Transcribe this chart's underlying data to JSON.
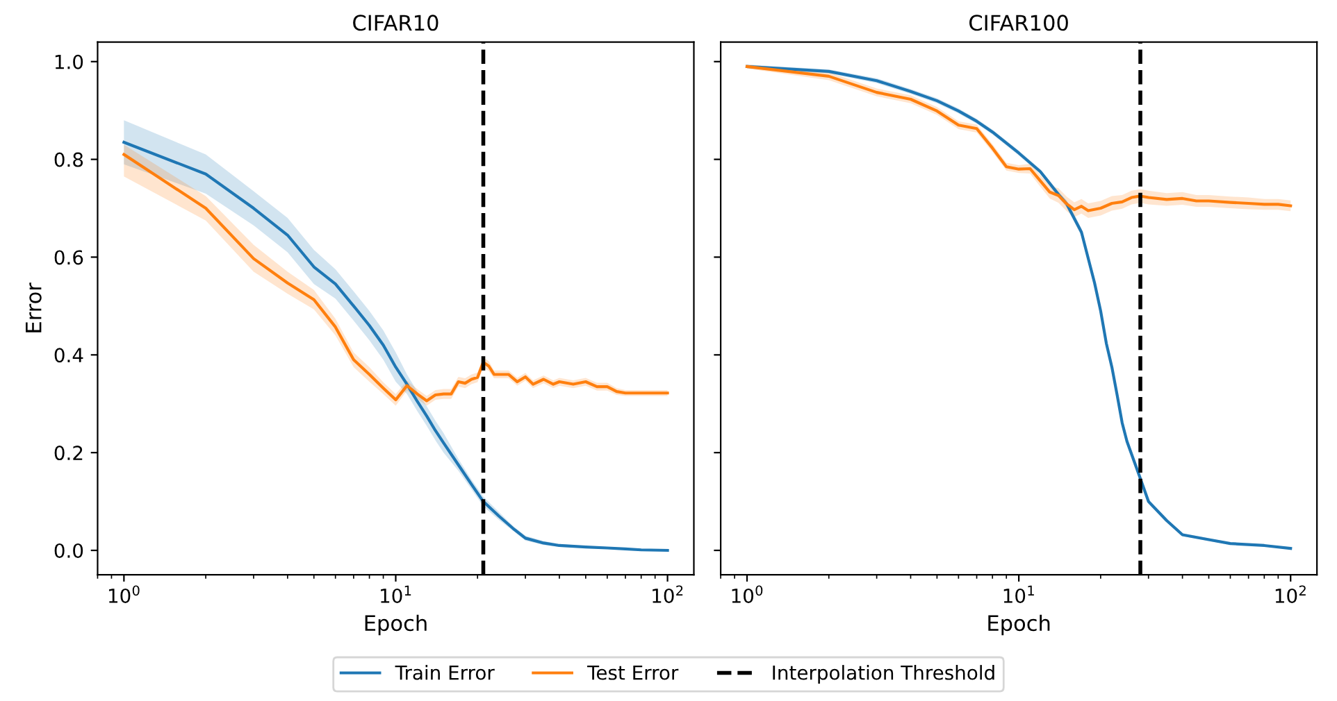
{
  "chart_data": [
    {
      "type": "line",
      "title": "CIFAR10",
      "xlabel": "Epoch",
      "ylabel": "Error",
      "log": "x",
      "xlim": [
        0.8,
        125
      ],
      "xticks": [
        {
          "value": 1,
          "label": "10$^{0}$"
        },
        {
          "value": 10,
          "label": "10$^{1}$"
        },
        {
          "value": 100,
          "label": "10$^{2}$"
        }
      ],
      "ylim": [
        -0.05,
        1.04
      ],
      "yticks": [
        {
          "value": 0,
          "label": "0.0"
        },
        {
          "value": 0.2,
          "label": "0.2"
        },
        {
          "value": 0.4,
          "label": "0.4"
        },
        {
          "value": 0.6,
          "label": "0.6"
        },
        {
          "value": 0.8,
          "label": "0.8"
        },
        {
          "value": 1,
          "label": "1.0"
        }
      ],
      "grid": false,
      "legend": "bottom",
      "series": [
        {
          "name": "Train Error",
          "color": "#1f77b4",
          "x": [
            1,
            2,
            3,
            4,
            5,
            6,
            7,
            8,
            9,
            10,
            11,
            12,
            13,
            14,
            15,
            17,
            19,
            21,
            24,
            27,
            30,
            35,
            40,
            50,
            60,
            70,
            80,
            100
          ],
          "values": [
            0.835,
            0.77,
            0.7,
            0.645,
            0.58,
            0.545,
            0.5,
            0.46,
            0.42,
            0.375,
            0.34,
            0.305,
            0.275,
            0.245,
            0.22,
            0.175,
            0.135,
            0.1,
            0.07,
            0.045,
            0.025,
            0.015,
            0.01,
            0.007,
            0.005,
            0.003,
            0.001,
            0.0
          ],
          "lower": [
            0.79,
            0.73,
            0.665,
            0.61,
            0.545,
            0.515,
            0.47,
            0.43,
            0.39,
            0.345,
            0.32,
            0.285,
            0.255,
            0.225,
            0.2,
            0.163,
            0.125,
            0.09,
            0.062,
            0.04,
            0.02,
            0.011,
            0.007,
            0.005,
            0.003,
            0.002,
            0.0,
            0.0
          ],
          "upper": [
            0.88,
            0.81,
            0.735,
            0.68,
            0.615,
            0.575,
            0.53,
            0.49,
            0.45,
            0.405,
            0.36,
            0.325,
            0.295,
            0.265,
            0.24,
            0.187,
            0.145,
            0.11,
            0.078,
            0.05,
            0.03,
            0.019,
            0.013,
            0.009,
            0.007,
            0.004,
            0.002,
            0.001
          ]
        },
        {
          "name": "Test Error",
          "color": "#ff7f0e",
          "x": [
            1,
            2,
            3,
            4,
            5,
            6,
            7,
            8,
            9,
            10,
            11,
            12,
            13,
            14,
            15,
            16,
            17,
            18,
            19,
            20,
            21,
            22,
            23,
            26,
            28,
            30,
            32,
            35,
            38,
            40,
            45,
            50,
            55,
            60,
            65,
            70,
            80,
            90,
            100
          ],
          "values": [
            0.81,
            0.7,
            0.597,
            0.547,
            0.513,
            0.457,
            0.39,
            0.36,
            0.332,
            0.308,
            0.337,
            0.32,
            0.306,
            0.318,
            0.32,
            0.32,
            0.345,
            0.342,
            0.35,
            0.354,
            0.385,
            0.377,
            0.36,
            0.36,
            0.345,
            0.355,
            0.34,
            0.35,
            0.34,
            0.345,
            0.34,
            0.345,
            0.335,
            0.335,
            0.325,
            0.322,
            0.322,
            0.322,
            0.322
          ],
          "lower": [
            0.765,
            0.675,
            0.57,
            0.525,
            0.493,
            0.44,
            0.375,
            0.345,
            0.32,
            0.296,
            0.327,
            0.31,
            0.296,
            0.308,
            0.31,
            0.31,
            0.335,
            0.332,
            0.34,
            0.344,
            0.375,
            0.367,
            0.352,
            0.352,
            0.337,
            0.347,
            0.332,
            0.342,
            0.332,
            0.337,
            0.332,
            0.337,
            0.327,
            0.327,
            0.318,
            0.316,
            0.316,
            0.316,
            0.316
          ],
          "upper": [
            0.83,
            0.725,
            0.625,
            0.57,
            0.533,
            0.474,
            0.405,
            0.375,
            0.344,
            0.32,
            0.347,
            0.33,
            0.316,
            0.328,
            0.33,
            0.33,
            0.355,
            0.352,
            0.36,
            0.364,
            0.395,
            0.387,
            0.368,
            0.368,
            0.353,
            0.363,
            0.348,
            0.358,
            0.348,
            0.353,
            0.348,
            0.353,
            0.343,
            0.343,
            0.332,
            0.328,
            0.328,
            0.328,
            0.328
          ]
        }
      ],
      "ref_lines": [
        {
          "axis": "x",
          "value": 21,
          "label": "Interpolation Threshold",
          "color": "#000000",
          "line_style": "dashed"
        }
      ]
    },
    {
      "type": "line",
      "title": "CIFAR100",
      "xlabel": "Epoch",
      "log": "x",
      "xlim": [
        0.8,
        125
      ],
      "xticks": [
        {
          "value": 1,
          "label": "10$^{0}$"
        },
        {
          "value": 10,
          "label": "10$^{1}$"
        },
        {
          "value": 100,
          "label": "10$^{2}$"
        }
      ],
      "ylim": [
        -0.05,
        1.04
      ],
      "yticks": [
        {
          "value": 0,
          "label": null
        },
        {
          "value": 0.2,
          "label": null
        },
        {
          "value": 0.4,
          "label": null
        },
        {
          "value": 0.6,
          "label": null
        },
        {
          "value": 0.8,
          "label": null
        },
        {
          "value": 1,
          "label": null
        }
      ],
      "tick_labels": "x",
      "grid": false,
      "series": [
        {
          "color": "#1f77b4",
          "x": [
            1,
            2,
            3,
            4,
            5,
            6,
            7,
            8,
            10,
            12,
            14,
            15,
            17,
            19,
            20,
            21,
            22,
            23,
            24,
            25,
            28,
            30,
            35,
            40,
            50,
            60,
            80,
            100
          ],
          "values": [
            0.99,
            0.98,
            0.961,
            0.939,
            0.92,
            0.899,
            0.878,
            0.856,
            0.813,
            0.775,
            0.728,
            0.709,
            0.651,
            0.547,
            0.49,
            0.423,
            0.375,
            0.318,
            0.261,
            0.223,
            0.147,
            0.1,
            0.061,
            0.032,
            0.022,
            0.014,
            0.01,
            0.004
          ],
          "lower": [
            0.986,
            0.976,
            0.956,
            0.934,
            0.915,
            0.894,
            0.873,
            0.851,
            0.808,
            0.77,
            0.722,
            0.702,
            0.643,
            0.537,
            0.48,
            0.413,
            0.365,
            0.308,
            0.252,
            0.215,
            0.14,
            0.095,
            0.057,
            0.029,
            0.019,
            0.012,
            0.008,
            0.002
          ],
          "upper": [
            0.994,
            0.984,
            0.966,
            0.944,
            0.925,
            0.904,
            0.883,
            0.861,
            0.818,
            0.78,
            0.734,
            0.716,
            0.659,
            0.557,
            0.5,
            0.433,
            0.385,
            0.328,
            0.27,
            0.231,
            0.154,
            0.105,
            0.065,
            0.035,
            0.025,
            0.016,
            0.012,
            0.006
          ]
        },
        {
          "color": "#ff7f0e",
          "x": [
            1,
            2,
            3,
            4,
            5,
            6,
            7,
            8,
            9,
            10,
            11,
            12,
            13,
            14,
            15,
            16,
            17,
            18,
            20,
            22,
            24,
            26,
            28,
            30,
            35,
            40,
            45,
            50,
            60,
            70,
            80,
            90,
            100
          ],
          "values": [
            0.99,
            0.97,
            0.937,
            0.923,
            0.899,
            0.87,
            0.863,
            0.823,
            0.785,
            0.78,
            0.781,
            0.756,
            0.733,
            0.726,
            0.709,
            0.697,
            0.704,
            0.695,
            0.7,
            0.71,
            0.713,
            0.722,
            0.725,
            0.722,
            0.718,
            0.72,
            0.715,
            0.715,
            0.712,
            0.71,
            0.708,
            0.708,
            0.705
          ],
          "lower": [
            0.986,
            0.962,
            0.929,
            0.915,
            0.891,
            0.862,
            0.855,
            0.815,
            0.777,
            0.772,
            0.771,
            0.744,
            0.72,
            0.711,
            0.694,
            0.682,
            0.689,
            0.68,
            0.685,
            0.695,
            0.699,
            0.708,
            0.711,
            0.708,
            0.705,
            0.707,
            0.703,
            0.703,
            0.7,
            0.698,
            0.697,
            0.697,
            0.694
          ],
          "upper": [
            0.994,
            0.978,
            0.945,
            0.931,
            0.907,
            0.878,
            0.871,
            0.831,
            0.793,
            0.788,
            0.791,
            0.768,
            0.746,
            0.741,
            0.724,
            0.712,
            0.719,
            0.71,
            0.715,
            0.725,
            0.727,
            0.736,
            0.739,
            0.736,
            0.731,
            0.733,
            0.727,
            0.727,
            0.724,
            0.722,
            0.719,
            0.719,
            0.716
          ]
        }
      ],
      "ref_lines": [
        {
          "axis": "x",
          "value": 28,
          "color": "#000000",
          "line_style": "dashed"
        }
      ]
    }
  ]
}
